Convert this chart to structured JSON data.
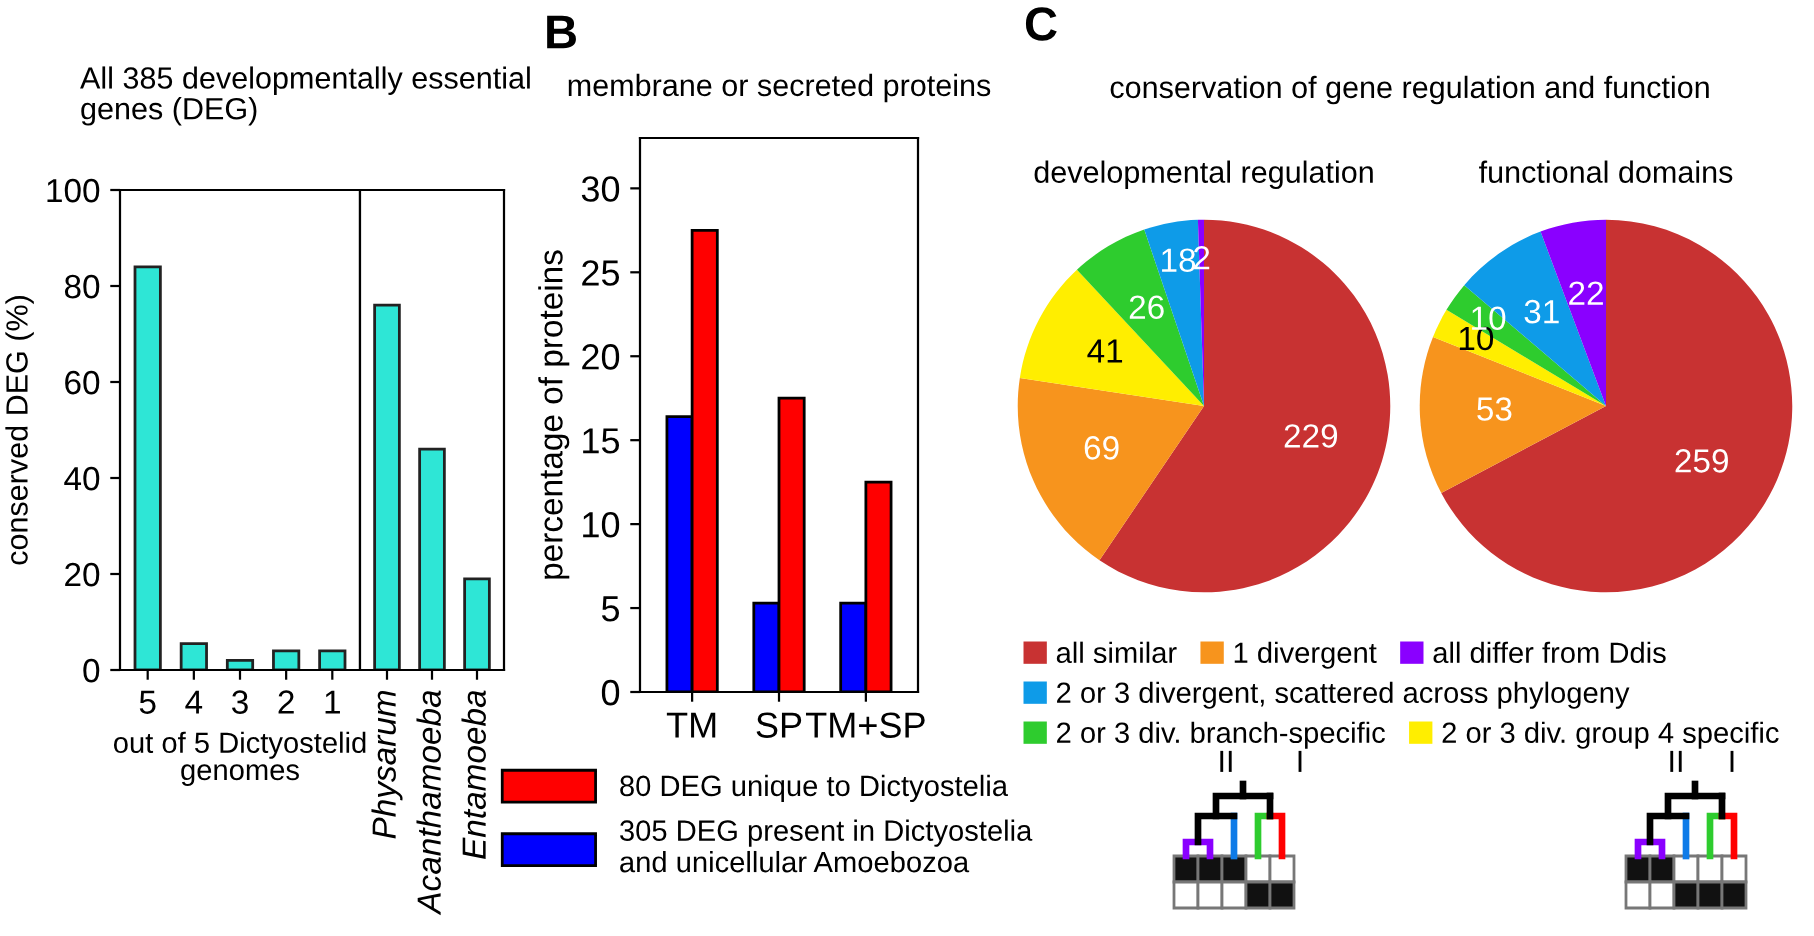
{
  "chart_data": [
    {
      "type": "bar",
      "title": "All 385 developmentally essential\ngenes (DEG)",
      "ylabel": "conserved DEG (%)",
      "xlabel": "out of 5 Dictyostelid\ngenomes",
      "categories": [
        "5",
        "4",
        "3",
        "2",
        "1"
      ],
      "values": [
        84,
        5.5,
        2,
        4,
        4
      ],
      "color": "#2ee6d6",
      "ylim": [
        0,
        100
      ],
      "yticks": [
        0,
        20,
        40,
        60,
        80,
        100
      ],
      "grid": false
    },
    {
      "type": "bar",
      "categories": [
        "Physarum",
        "Acanthamoeba",
        "Entamoeba"
      ],
      "values": [
        76,
        46,
        19
      ],
      "color": "#2ee6d6",
      "ylim": [
        0,
        100
      ],
      "yticks": [
        0,
        20,
        40,
        60,
        80,
        100
      ],
      "tick_labels": "x",
      "grid": false
    },
    {
      "type": "bar",
      "title": "membrane or secreted proteins",
      "ylabel": "percentage of proteins",
      "annotations": [
        "B"
      ],
      "categories": [
        "TM",
        "SP",
        "TM+SP"
      ],
      "series": [
        {
          "name": "305 DEG present in Dictyostelia\nand unicellular Amoebozoa",
          "color": "#0000ff",
          "values": [
            16.4,
            5.3,
            5.3
          ]
        },
        {
          "name": "80 DEG unique to Dictyostelia",
          "color": "#ff0000",
          "values": [
            27.5,
            17.5,
            12.5
          ]
        }
      ],
      "ylim": [
        0,
        33
      ],
      "yticks": [
        0,
        5,
        10,
        15,
        20,
        25,
        30
      ],
      "legend": "bottom",
      "grid": false
    },
    {
      "type": "pie",
      "subtitle": "conservation of gene regulation and function",
      "title": "developmental regulation",
      "annotations": [
        "C",
        "II",
        "I"
      ],
      "categories": [
        "all similar",
        "1 divergent",
        "2 or 3 div. group 4 specific",
        "2 or 3 div. branch-specific",
        "2 or 3 divergent, scattered across phylogeny",
        "all differ from Ddis"
      ],
      "values": [
        229,
        69,
        41,
        26,
        18,
        2
      ],
      "colors": [
        "#c83232",
        "#f7941d",
        "#ffee00",
        "#2ecc2e",
        "#0e9be8",
        "#8a00ff"
      ],
      "data_labels": true,
      "legend": "bottom"
    },
    {
      "type": "pie",
      "title": "functional domains",
      "annotations": [
        "II",
        "I"
      ],
      "categories": [
        null,
        null,
        null,
        null,
        null,
        null
      ],
      "values": [
        259,
        53,
        10,
        10,
        31,
        22
      ],
      "colors": [
        "#c83232",
        "#f7941d",
        "#ffee00",
        "#2ecc2e",
        "#0e9be8",
        "#8a00ff"
      ],
      "data_labels": true
    }
  ]
}
